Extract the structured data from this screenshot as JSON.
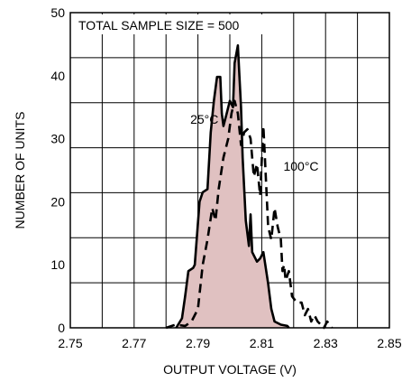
{
  "chart_data": {
    "type": "area",
    "title": "",
    "annotation": "TOTAL SAMPLE SIZE = 500",
    "xlabel": "OUTPUT VOLTAGE (V)",
    "ylabel": "NUMBER OF UNITS",
    "xlim": [
      2.75,
      2.85
    ],
    "ylim": [
      0,
      50
    ],
    "xticks": [
      "2.75",
      "2.77",
      "2.79",
      "2.81",
      "2.83",
      "2.85"
    ],
    "yticks": [
      "0",
      "10",
      "20",
      "30",
      "40",
      "50"
    ],
    "grid": true,
    "series": [
      {
        "name": "25°C",
        "style": "solid-filled",
        "color": "#000000",
        "fill": "#e0c1c1",
        "points": [
          [
            2.7832,
            0
          ],
          [
            2.785,
            1.5
          ],
          [
            2.786,
            5
          ],
          [
            2.787,
            9
          ],
          [
            2.7885,
            9.5
          ],
          [
            2.789,
            10
          ],
          [
            2.7905,
            20
          ],
          [
            2.7915,
            21.5
          ],
          [
            2.793,
            22
          ],
          [
            2.794,
            31
          ],
          [
            2.795,
            36
          ],
          [
            2.796,
            39.8
          ],
          [
            2.797,
            39.8
          ],
          [
            2.7975,
            34
          ],
          [
            2.798,
            32
          ],
          [
            2.799,
            34
          ],
          [
            2.8,
            36
          ],
          [
            2.801,
            35
          ],
          [
            2.8015,
            42
          ],
          [
            2.8025,
            44.8
          ],
          [
            2.803,
            40
          ],
          [
            2.8035,
            35
          ],
          [
            2.804,
            27
          ],
          [
            2.805,
            17
          ],
          [
            2.806,
            13
          ],
          [
            2.8065,
            18
          ],
          [
            2.807,
            12
          ],
          [
            2.8085,
            10.5
          ],
          [
            2.8095,
            11
          ],
          [
            2.8105,
            12
          ],
          [
            2.812,
            7
          ],
          [
            2.813,
            3
          ],
          [
            2.814,
            1
          ],
          [
            2.816,
            0.5
          ],
          [
            2.818,
            0.3
          ],
          [
            2.8185,
            0
          ]
        ]
      },
      {
        "name": "100°C",
        "style": "dashed",
        "color": "#000000",
        "points": [
          [
            2.78,
            0
          ],
          [
            2.783,
            0.5
          ],
          [
            2.786,
            0.3
          ],
          [
            2.788,
            1
          ],
          [
            2.79,
            3
          ],
          [
            2.7915,
            10
          ],
          [
            2.793,
            14
          ],
          [
            2.7945,
            19
          ],
          [
            2.7955,
            17
          ],
          [
            2.7965,
            22
          ],
          [
            2.798,
            27
          ],
          [
            2.7995,
            30
          ],
          [
            2.8005,
            34
          ],
          [
            2.8015,
            36
          ],
          [
            2.8025,
            34
          ],
          [
            2.8035,
            29
          ],
          [
            2.8045,
            31
          ],
          [
            2.8055,
            31.5
          ],
          [
            2.8065,
            30
          ],
          [
            2.8075,
            24
          ],
          [
            2.8085,
            26
          ],
          [
            2.8095,
            21
          ],
          [
            2.8105,
            32
          ],
          [
            2.811,
            27
          ],
          [
            2.812,
            16
          ],
          [
            2.813,
            14
          ],
          [
            2.814,
            19
          ],
          [
            2.815,
            16
          ],
          [
            2.816,
            14
          ],
          [
            2.8165,
            9
          ],
          [
            2.817,
            10
          ],
          [
            2.8175,
            7.5
          ],
          [
            2.8185,
            9
          ],
          [
            2.8195,
            5
          ],
          [
            2.821,
            4
          ],
          [
            2.8225,
            4
          ],
          [
            2.8235,
            2
          ],
          [
            2.8245,
            3
          ],
          [
            2.8255,
            1
          ],
          [
            2.8265,
            2
          ],
          [
            2.8275,
            1
          ],
          [
            2.8285,
            0.5
          ],
          [
            2.8295,
            0
          ],
          [
            2.8305,
            1
          ],
          [
            2.832,
            0
          ]
        ]
      }
    ],
    "labels": [
      {
        "text": "25°C",
        "x": 2.7876,
        "y": 32.4
      },
      {
        "text": "100°C",
        "x": 2.8168,
        "y": 24.9
      }
    ]
  }
}
